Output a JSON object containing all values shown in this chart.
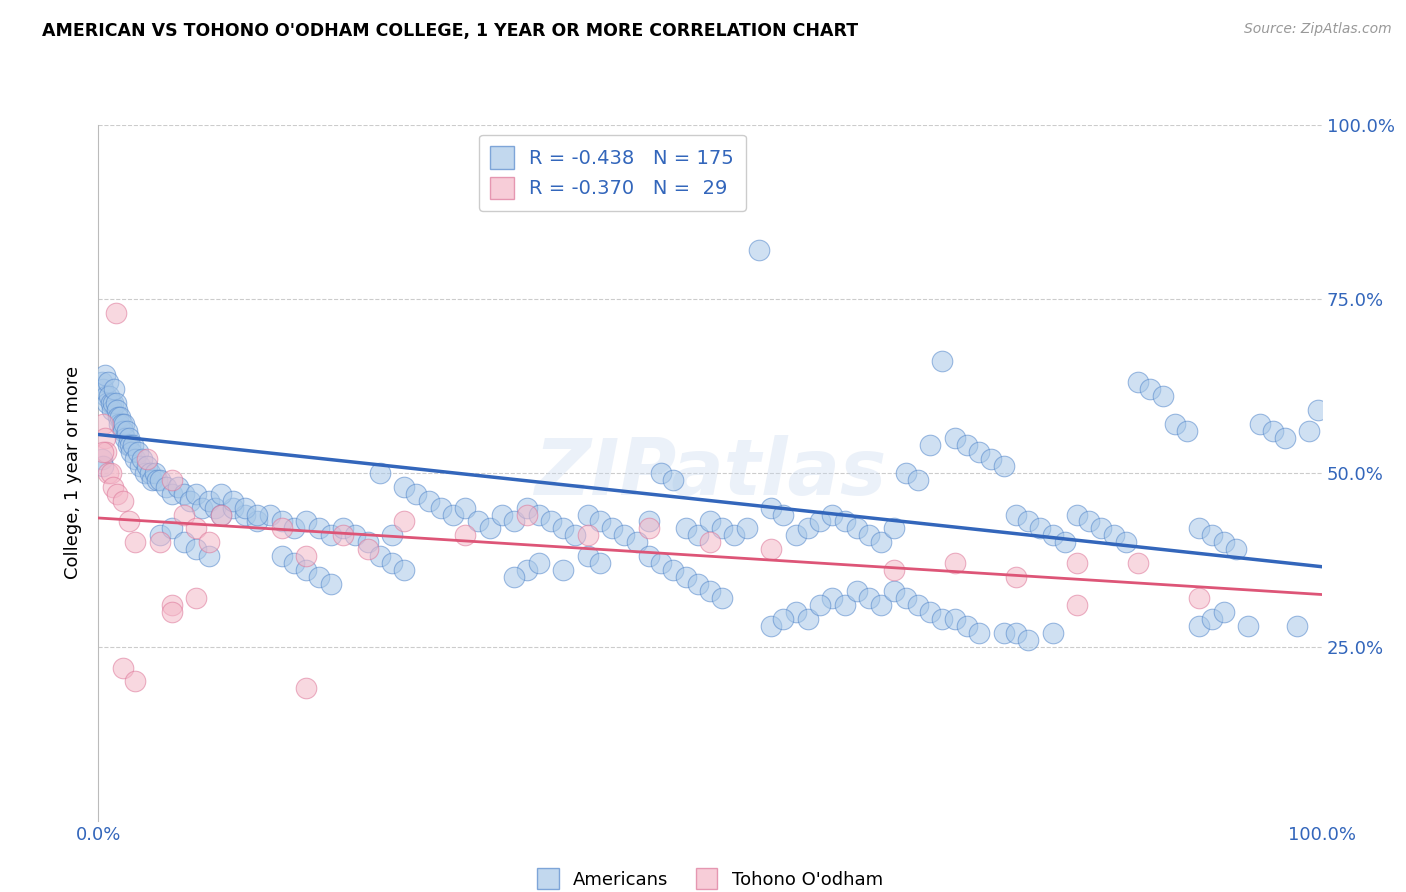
{
  "title": "AMERICAN VS TOHONO O'ODHAM COLLEGE, 1 YEAR OR MORE CORRELATION CHART",
  "source": "Source: ZipAtlas.com",
  "ylabel": "College, 1 year or more",
  "legend_blue_R": "-0.438",
  "legend_blue_N": "175",
  "legend_pink_R": "-0.370",
  "legend_pink_N": "29",
  "xlim": [
    0.0,
    1.0
  ],
  "ylim": [
    0.0,
    1.0
  ],
  "blue_color": "#a8c8e8",
  "pink_color": "#f4b8c8",
  "blue_edge_color": "#5588cc",
  "pink_edge_color": "#dd7799",
  "blue_line_color": "#3366bb",
  "pink_line_color": "#dd5577",
  "text_color": "#3366bb",
  "watermark": "ZIPatlas",
  "blue_trend_x": [
    0.0,
    1.0
  ],
  "blue_trend_y": [
    0.555,
    0.365
  ],
  "pink_trend_x": [
    0.0,
    1.0
  ],
  "pink_trend_y": [
    0.435,
    0.325
  ],
  "blue_scatter": [
    [
      0.003,
      0.63
    ],
    [
      0.004,
      0.62
    ],
    [
      0.005,
      0.64
    ],
    [
      0.006,
      0.61
    ],
    [
      0.007,
      0.6
    ],
    [
      0.008,
      0.63
    ],
    [
      0.009,
      0.61
    ],
    [
      0.01,
      0.6
    ],
    [
      0.011,
      0.59
    ],
    [
      0.012,
      0.6
    ],
    [
      0.013,
      0.62
    ],
    [
      0.014,
      0.6
    ],
    [
      0.015,
      0.59
    ],
    [
      0.016,
      0.58
    ],
    [
      0.017,
      0.57
    ],
    [
      0.018,
      0.58
    ],
    [
      0.019,
      0.57
    ],
    [
      0.02,
      0.56
    ],
    [
      0.021,
      0.57
    ],
    [
      0.022,
      0.55
    ],
    [
      0.023,
      0.56
    ],
    [
      0.024,
      0.54
    ],
    [
      0.025,
      0.55
    ],
    [
      0.026,
      0.54
    ],
    [
      0.027,
      0.53
    ],
    [
      0.028,
      0.54
    ],
    [
      0.03,
      0.52
    ],
    [
      0.032,
      0.53
    ],
    [
      0.034,
      0.51
    ],
    [
      0.036,
      0.52
    ],
    [
      0.038,
      0.5
    ],
    [
      0.04,
      0.51
    ],
    [
      0.042,
      0.5
    ],
    [
      0.044,
      0.49
    ],
    [
      0.046,
      0.5
    ],
    [
      0.048,
      0.49
    ],
    [
      0.05,
      0.49
    ],
    [
      0.055,
      0.48
    ],
    [
      0.06,
      0.47
    ],
    [
      0.065,
      0.48
    ],
    [
      0.07,
      0.47
    ],
    [
      0.075,
      0.46
    ],
    [
      0.08,
      0.47
    ],
    [
      0.085,
      0.45
    ],
    [
      0.09,
      0.46
    ],
    [
      0.095,
      0.45
    ],
    [
      0.1,
      0.44
    ],
    [
      0.11,
      0.45
    ],
    [
      0.12,
      0.44
    ],
    [
      0.13,
      0.43
    ],
    [
      0.14,
      0.44
    ],
    [
      0.15,
      0.43
    ],
    [
      0.16,
      0.42
    ],
    [
      0.17,
      0.43
    ],
    [
      0.18,
      0.42
    ],
    [
      0.19,
      0.41
    ],
    [
      0.2,
      0.42
    ],
    [
      0.21,
      0.41
    ],
    [
      0.22,
      0.4
    ],
    [
      0.23,
      0.5
    ],
    [
      0.24,
      0.41
    ],
    [
      0.25,
      0.48
    ],
    [
      0.26,
      0.47
    ],
    [
      0.27,
      0.46
    ],
    [
      0.28,
      0.45
    ],
    [
      0.29,
      0.44
    ],
    [
      0.3,
      0.45
    ],
    [
      0.31,
      0.43
    ],
    [
      0.32,
      0.42
    ],
    [
      0.33,
      0.44
    ],
    [
      0.34,
      0.43
    ],
    [
      0.35,
      0.45
    ],
    [
      0.36,
      0.44
    ],
    [
      0.37,
      0.43
    ],
    [
      0.38,
      0.42
    ],
    [
      0.39,
      0.41
    ],
    [
      0.4,
      0.44
    ],
    [
      0.41,
      0.43
    ],
    [
      0.42,
      0.42
    ],
    [
      0.43,
      0.41
    ],
    [
      0.44,
      0.4
    ],
    [
      0.45,
      0.43
    ],
    [
      0.46,
      0.5
    ],
    [
      0.47,
      0.49
    ],
    [
      0.48,
      0.42
    ],
    [
      0.49,
      0.41
    ],
    [
      0.5,
      0.43
    ],
    [
      0.51,
      0.42
    ],
    [
      0.52,
      0.41
    ],
    [
      0.53,
      0.42
    ],
    [
      0.54,
      0.82
    ],
    [
      0.55,
      0.45
    ],
    [
      0.56,
      0.44
    ],
    [
      0.57,
      0.41
    ],
    [
      0.58,
      0.42
    ],
    [
      0.59,
      0.43
    ],
    [
      0.6,
      0.44
    ],
    [
      0.61,
      0.43
    ],
    [
      0.62,
      0.42
    ],
    [
      0.63,
      0.41
    ],
    [
      0.64,
      0.4
    ],
    [
      0.65,
      0.42
    ],
    [
      0.66,
      0.5
    ],
    [
      0.67,
      0.49
    ],
    [
      0.68,
      0.54
    ],
    [
      0.69,
      0.66
    ],
    [
      0.7,
      0.55
    ],
    [
      0.71,
      0.54
    ],
    [
      0.72,
      0.53
    ],
    [
      0.73,
      0.52
    ],
    [
      0.74,
      0.51
    ],
    [
      0.75,
      0.44
    ],
    [
      0.76,
      0.43
    ],
    [
      0.77,
      0.42
    ],
    [
      0.78,
      0.41
    ],
    [
      0.79,
      0.4
    ],
    [
      0.8,
      0.44
    ],
    [
      0.81,
      0.43
    ],
    [
      0.82,
      0.42
    ],
    [
      0.83,
      0.41
    ],
    [
      0.84,
      0.4
    ],
    [
      0.85,
      0.63
    ],
    [
      0.86,
      0.62
    ],
    [
      0.87,
      0.61
    ],
    [
      0.88,
      0.57
    ],
    [
      0.89,
      0.56
    ],
    [
      0.9,
      0.42
    ],
    [
      0.91,
      0.41
    ],
    [
      0.92,
      0.4
    ],
    [
      0.93,
      0.39
    ],
    [
      0.94,
      0.28
    ],
    [
      0.95,
      0.57
    ],
    [
      0.96,
      0.56
    ],
    [
      0.97,
      0.55
    ],
    [
      0.98,
      0.28
    ],
    [
      0.99,
      0.56
    ],
    [
      0.997,
      0.59
    ],
    [
      0.15,
      0.38
    ],
    [
      0.16,
      0.37
    ],
    [
      0.17,
      0.36
    ],
    [
      0.18,
      0.35
    ],
    [
      0.19,
      0.34
    ],
    [
      0.05,
      0.41
    ],
    [
      0.06,
      0.42
    ],
    [
      0.07,
      0.4
    ],
    [
      0.08,
      0.39
    ],
    [
      0.09,
      0.38
    ],
    [
      0.1,
      0.47
    ],
    [
      0.11,
      0.46
    ],
    [
      0.12,
      0.45
    ],
    [
      0.13,
      0.44
    ],
    [
      0.45,
      0.38
    ],
    [
      0.46,
      0.37
    ],
    [
      0.47,
      0.36
    ],
    [
      0.48,
      0.35
    ],
    [
      0.49,
      0.34
    ],
    [
      0.5,
      0.33
    ],
    [
      0.51,
      0.32
    ],
    [
      0.4,
      0.38
    ],
    [
      0.41,
      0.37
    ],
    [
      0.35,
      0.36
    ],
    [
      0.6,
      0.32
    ],
    [
      0.61,
      0.31
    ],
    [
      0.62,
      0.33
    ],
    [
      0.63,
      0.32
    ],
    [
      0.64,
      0.31
    ],
    [
      0.65,
      0.33
    ],
    [
      0.66,
      0.32
    ],
    [
      0.67,
      0.31
    ],
    [
      0.68,
      0.3
    ],
    [
      0.69,
      0.29
    ],
    [
      0.74,
      0.27
    ],
    [
      0.75,
      0.27
    ],
    [
      0.76,
      0.26
    ],
    [
      0.78,
      0.27
    ],
    [
      0.9,
      0.28
    ],
    [
      0.91,
      0.29
    ],
    [
      0.92,
      0.3
    ],
    [
      0.34,
      0.35
    ],
    [
      0.36,
      0.37
    ],
    [
      0.38,
      0.36
    ],
    [
      0.23,
      0.38
    ],
    [
      0.24,
      0.37
    ],
    [
      0.25,
      0.36
    ],
    [
      0.003,
      0.52
    ],
    [
      0.004,
      0.51
    ],
    [
      0.57,
      0.3
    ],
    [
      0.58,
      0.29
    ],
    [
      0.59,
      0.31
    ],
    [
      0.7,
      0.29
    ],
    [
      0.71,
      0.28
    ],
    [
      0.72,
      0.27
    ],
    [
      0.55,
      0.28
    ],
    [
      0.56,
      0.29
    ]
  ],
  "pink_scatter": [
    [
      0.004,
      0.57
    ],
    [
      0.005,
      0.55
    ],
    [
      0.006,
      0.53
    ],
    [
      0.008,
      0.5
    ],
    [
      0.01,
      0.5
    ],
    [
      0.012,
      0.48
    ],
    [
      0.015,
      0.47
    ],
    [
      0.02,
      0.46
    ],
    [
      0.025,
      0.43
    ],
    [
      0.03,
      0.4
    ],
    [
      0.04,
      0.52
    ],
    [
      0.05,
      0.4
    ],
    [
      0.06,
      0.49
    ],
    [
      0.07,
      0.44
    ],
    [
      0.08,
      0.42
    ],
    [
      0.09,
      0.4
    ],
    [
      0.1,
      0.44
    ],
    [
      0.15,
      0.42
    ],
    [
      0.17,
      0.38
    ],
    [
      0.2,
      0.41
    ],
    [
      0.22,
      0.39
    ],
    [
      0.25,
      0.43
    ],
    [
      0.3,
      0.41
    ],
    [
      0.35,
      0.44
    ],
    [
      0.4,
      0.41
    ],
    [
      0.45,
      0.42
    ],
    [
      0.5,
      0.4
    ],
    [
      0.55,
      0.39
    ],
    [
      0.7,
      0.37
    ],
    [
      0.8,
      0.37
    ],
    [
      0.014,
      0.73
    ],
    [
      0.004,
      0.53
    ],
    [
      0.02,
      0.22
    ],
    [
      0.03,
      0.2
    ],
    [
      0.06,
      0.31
    ],
    [
      0.06,
      0.3
    ],
    [
      0.08,
      0.32
    ],
    [
      0.17,
      0.19
    ],
    [
      0.65,
      0.36
    ],
    [
      0.75,
      0.35
    ],
    [
      0.8,
      0.31
    ],
    [
      0.85,
      0.37
    ],
    [
      0.9,
      0.32
    ]
  ]
}
